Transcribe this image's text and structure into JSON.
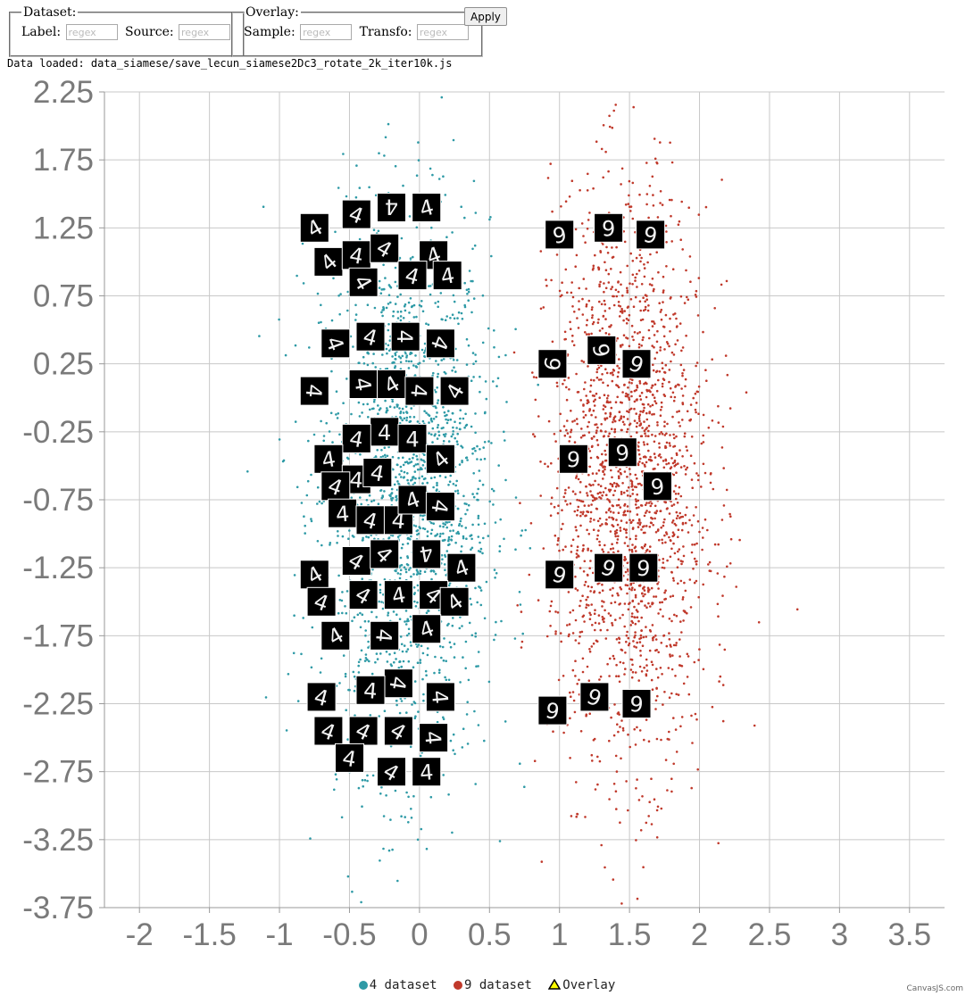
{
  "controls": {
    "dataset_legend": "Dataset:",
    "label_text": "Label:",
    "label_placeholder": "regex",
    "source_text": "Source:",
    "source_placeholder": "regex",
    "overlay_legend": "Overlay:",
    "sample_text": "Sample:",
    "sample_placeholder": "regex",
    "transfo_text": "Transfo:",
    "transfo_placeholder": "regex",
    "apply_label": "Apply"
  },
  "status": {
    "loaded_text": "Data loaded: data_siamese/save_lecun_siamese2Dc3_rotate_2k_iter10k.js"
  },
  "chart_data": {
    "type": "scatter",
    "title": "",
    "xlabel": "",
    "ylabel": "",
    "xlim": [
      -2.25,
      3.75
    ],
    "ylim": [
      -3.75,
      2.25
    ],
    "x_ticks": [
      "-2",
      "-1.5",
      "-1",
      "-0.5",
      "0",
      "0.5",
      "1",
      "1.5",
      "2",
      "2.5",
      "3",
      "3.5"
    ],
    "y_ticks": [
      "2.25",
      "1.75",
      "1.25",
      "0.75",
      "0.25",
      "-0.25",
      "-0.75",
      "-1.25",
      "-1.75",
      "-2.25",
      "-2.75",
      "-3.25",
      "-3.75"
    ],
    "grid": true,
    "legend_position": "bottom-center",
    "series": [
      {
        "name": "4 dataset",
        "color": "#2e9aa6",
        "cluster_center": [
          -0.1,
          -0.7
        ],
        "cluster_spread": [
          0.3,
          1.0
        ],
        "point_count": 2000
      },
      {
        "name": "9 dataset",
        "color": "#c0392b",
        "cluster_center": [
          1.5,
          -0.6
        ],
        "cluster_spread": [
          0.28,
          1.05
        ],
        "point_count": 2000
      },
      {
        "name": "Overlay",
        "color": "#ffff00",
        "marker": "triangle"
      }
    ],
    "overlay_samples": [
      {
        "digit": "4",
        "x": -0.75,
        "y": 1.25,
        "rot": -30
      },
      {
        "digit": "4",
        "x": -0.45,
        "y": 1.35,
        "rot": 20
      },
      {
        "digit": "4",
        "x": -0.2,
        "y": 1.4,
        "rot": 180
      },
      {
        "digit": "4",
        "x": 0.05,
        "y": 1.4,
        "rot": -15
      },
      {
        "digit": "4",
        "x": -0.65,
        "y": 1.0,
        "rot": -40
      },
      {
        "digit": "4",
        "x": -0.45,
        "y": 1.05,
        "rot": 10
      },
      {
        "digit": "4",
        "x": -0.25,
        "y": 1.1,
        "rot": 30
      },
      {
        "digit": "4",
        "x": 0.1,
        "y": 1.05,
        "rot": -20
      },
      {
        "digit": "4",
        "x": -0.4,
        "y": 0.85,
        "rot": 60
      },
      {
        "digit": "4",
        "x": -0.05,
        "y": 0.9,
        "rot": 15
      },
      {
        "digit": "4",
        "x": 0.2,
        "y": 0.9,
        "rot": -10
      },
      {
        "digit": "4",
        "x": -0.6,
        "y": 0.4,
        "rot": 70
      },
      {
        "digit": "4",
        "x": -0.35,
        "y": 0.45,
        "rot": 15
      },
      {
        "digit": "4",
        "x": -0.1,
        "y": 0.45,
        "rot": 90
      },
      {
        "digit": "4",
        "x": 0.15,
        "y": 0.4,
        "rot": 110
      },
      {
        "digit": "4",
        "x": -0.75,
        "y": 0.05,
        "rot": 95
      },
      {
        "digit": "4",
        "x": -0.4,
        "y": 0.1,
        "rot": 80
      },
      {
        "digit": "4",
        "x": -0.2,
        "y": 0.1,
        "rot": -30
      },
      {
        "digit": "4",
        "x": 0.0,
        "y": 0.05,
        "rot": 95
      },
      {
        "digit": "4",
        "x": 0.25,
        "y": 0.05,
        "rot": -60
      },
      {
        "digit": "4",
        "x": -0.25,
        "y": -0.25,
        "rot": 0
      },
      {
        "digit": "4",
        "x": -0.45,
        "y": -0.3,
        "rot": 10
      },
      {
        "digit": "4",
        "x": -0.05,
        "y": -0.3,
        "rot": 0
      },
      {
        "digit": "4",
        "x": -0.65,
        "y": -0.45,
        "rot": -10
      },
      {
        "digit": "4",
        "x": 0.15,
        "y": -0.45,
        "rot": -40
      },
      {
        "digit": "4",
        "x": -0.45,
        "y": -0.6,
        "rot": 5
      },
      {
        "digit": "4",
        "x": -0.3,
        "y": -0.55,
        "rot": 10
      },
      {
        "digit": "4",
        "x": -0.6,
        "y": -0.65,
        "rot": 20
      },
      {
        "digit": "4",
        "x": -0.55,
        "y": -0.85,
        "rot": -5
      },
      {
        "digit": "4",
        "x": -0.35,
        "y": -0.9,
        "rot": 15
      },
      {
        "digit": "4",
        "x": -0.15,
        "y": -0.9,
        "rot": 5
      },
      {
        "digit": "4",
        "x": -0.05,
        "y": -0.75,
        "rot": -20
      },
      {
        "digit": "4",
        "x": 0.15,
        "y": -0.8,
        "rot": 100
      },
      {
        "digit": "4",
        "x": -0.45,
        "y": -1.2,
        "rot": 30
      },
      {
        "digit": "4",
        "x": -0.25,
        "y": -1.15,
        "rot": 45
      },
      {
        "digit": "4",
        "x": 0.05,
        "y": -1.15,
        "rot": 170
      },
      {
        "digit": "4",
        "x": 0.3,
        "y": -1.25,
        "rot": -20
      },
      {
        "digit": "4",
        "x": -0.75,
        "y": -1.3,
        "rot": -30
      },
      {
        "digit": "4",
        "x": -0.7,
        "y": -1.5,
        "rot": 20
      },
      {
        "digit": "4",
        "x": -0.4,
        "y": -1.45,
        "rot": 30
      },
      {
        "digit": "4",
        "x": -0.15,
        "y": -1.45,
        "rot": -10
      },
      {
        "digit": "4",
        "x": 0.1,
        "y": -1.45,
        "rot": 40
      },
      {
        "digit": "4",
        "x": 0.25,
        "y": -1.5,
        "rot": -35
      },
      {
        "digit": "4",
        "x": -0.6,
        "y": -1.75,
        "rot": -30
      },
      {
        "digit": "4",
        "x": -0.25,
        "y": -1.75,
        "rot": 95
      },
      {
        "digit": "4",
        "x": 0.05,
        "y": -1.7,
        "rot": -20
      },
      {
        "digit": "4",
        "x": -0.15,
        "y": -2.1,
        "rot": 100
      },
      {
        "digit": "4",
        "x": -0.35,
        "y": -2.15,
        "rot": 5
      },
      {
        "digit": "4",
        "x": -0.7,
        "y": -2.2,
        "rot": 15
      },
      {
        "digit": "4",
        "x": 0.15,
        "y": -2.2,
        "rot": 85
      },
      {
        "digit": "4",
        "x": -0.65,
        "y": -2.45,
        "rot": 20
      },
      {
        "digit": "4",
        "x": -0.4,
        "y": -2.45,
        "rot": 25
      },
      {
        "digit": "4",
        "x": -0.15,
        "y": -2.45,
        "rot": 30
      },
      {
        "digit": "4",
        "x": 0.1,
        "y": -2.5,
        "rot": 85
      },
      {
        "digit": "4",
        "x": -0.5,
        "y": -2.65,
        "rot": 10
      },
      {
        "digit": "4",
        "x": -0.2,
        "y": -2.75,
        "rot": 30
      },
      {
        "digit": "4",
        "x": 0.05,
        "y": -2.75,
        "rot": -5
      },
      {
        "digit": "9",
        "x": 1.0,
        "y": 1.2,
        "rot": -10
      },
      {
        "digit": "9",
        "x": 1.35,
        "y": 1.25,
        "rot": 0
      },
      {
        "digit": "9",
        "x": 1.65,
        "y": 1.2,
        "rot": 10
      },
      {
        "digit": "9",
        "x": 0.95,
        "y": 0.25,
        "rot": 100
      },
      {
        "digit": "9",
        "x": 1.3,
        "y": 0.35,
        "rot": 80
      },
      {
        "digit": "9",
        "x": 1.55,
        "y": 0.25,
        "rot": 20
      },
      {
        "digit": "9",
        "x": 1.1,
        "y": -0.45,
        "rot": 5
      },
      {
        "digit": "9",
        "x": 1.45,
        "y": -0.4,
        "rot": -5
      },
      {
        "digit": "9",
        "x": 1.7,
        "y": -0.65,
        "rot": -5
      },
      {
        "digit": "9",
        "x": 1.0,
        "y": -1.3,
        "rot": 15
      },
      {
        "digit": "9",
        "x": 1.35,
        "y": -1.25,
        "rot": 20
      },
      {
        "digit": "9",
        "x": 1.6,
        "y": -1.25,
        "rot": 5
      },
      {
        "digit": "9",
        "x": 0.95,
        "y": -2.3,
        "rot": 10
      },
      {
        "digit": "9",
        "x": 1.25,
        "y": -2.2,
        "rot": 20
      },
      {
        "digit": "9",
        "x": 1.55,
        "y": -2.25,
        "rot": 5
      }
    ]
  },
  "footer": {
    "credit": "CanvasJS.com"
  }
}
